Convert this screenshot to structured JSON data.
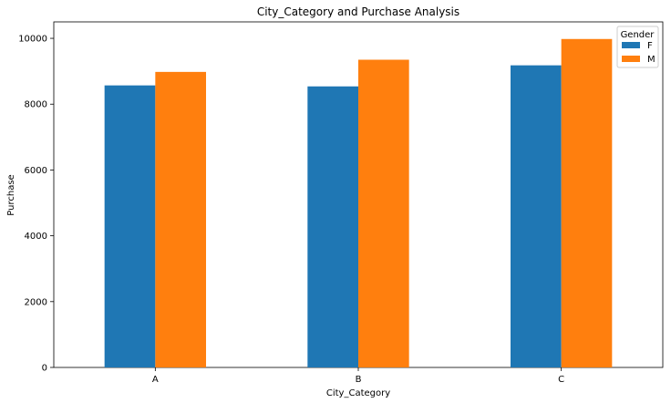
{
  "chart_data": {
    "type": "bar",
    "title": "City_Category and Purchase Analysis",
    "xlabel": "City_Category",
    "ylabel": "Purchase",
    "categories": [
      "A",
      "B",
      "C"
    ],
    "series": [
      {
        "name": "F",
        "values": [
          8570,
          8540,
          9180
        ],
        "color": "#1f77b4"
      },
      {
        "name": "M",
        "values": [
          8980,
          9350,
          9980
        ],
        "color": "#ff7f0e"
      }
    ],
    "ylim": [
      0,
      10500
    ],
    "yticks": [
      0,
      2000,
      4000,
      6000,
      8000,
      10000
    ],
    "legend": {
      "title": "Gender",
      "position": "top-right"
    },
    "grid": false
  }
}
